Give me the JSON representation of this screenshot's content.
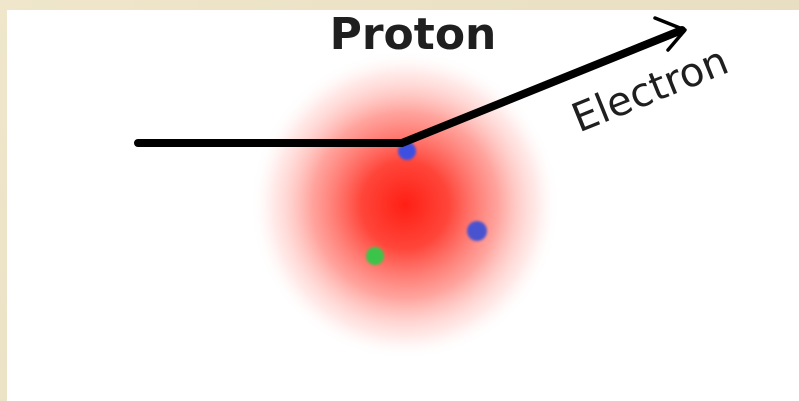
{
  "diagram": {
    "title": "Proton",
    "particle_label": "Electron",
    "colors": {
      "background": "#ffffff",
      "frame": "#e9e0c3",
      "proton": "#ff2a1f",
      "quark_blue": "#3f4fd9",
      "quark_green": "#45c84a",
      "track": "#000000"
    },
    "quarks": [
      {
        "color_name": "blue"
      },
      {
        "color_name": "blue"
      },
      {
        "color_name": "green"
      }
    ]
  }
}
